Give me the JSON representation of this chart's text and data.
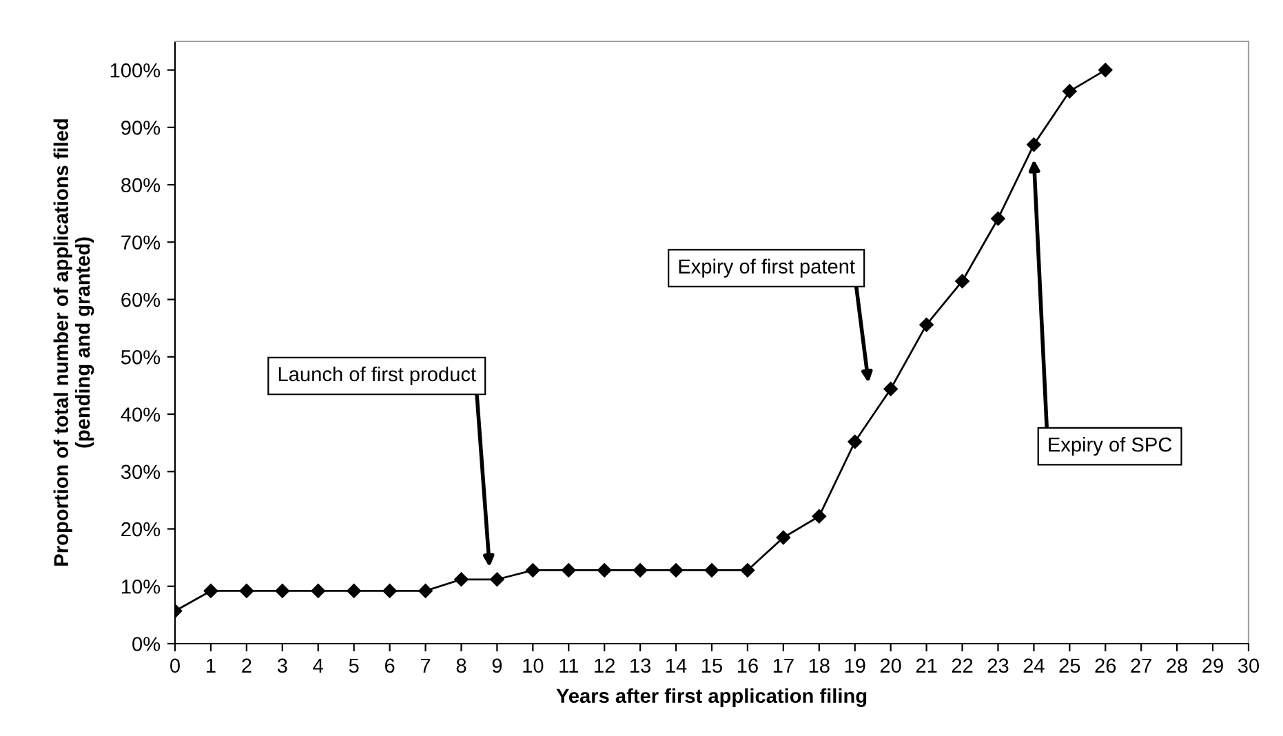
{
  "chart_data": {
    "type": "line",
    "xlabel": "Years after first application filing",
    "ylabel": "Proportion of total number of applications filed\n(pending and granted)",
    "x": [
      0,
      1,
      2,
      3,
      4,
      5,
      6,
      7,
      8,
      9,
      10,
      11,
      12,
      13,
      14,
      15,
      16,
      17,
      18,
      19,
      20,
      21,
      22,
      23,
      24,
      25,
      26
    ],
    "series": [
      {
        "color": "#000000",
        "values": [
          5.7,
          9.2,
          9.2,
          9.2,
          9.2,
          9.2,
          9.2,
          9.2,
          11.2,
          11.2,
          12.8,
          12.8,
          12.8,
          12.8,
          12.8,
          12.8,
          12.8,
          18.5,
          22.2,
          35.2,
          44.4,
          55.6,
          63.2,
          74.1,
          87.0,
          96.3,
          100
        ]
      }
    ],
    "marker": "diamond",
    "line_style": "solid",
    "xlim": [
      0,
      30
    ],
    "xticks": [
      0,
      1,
      2,
      3,
      4,
      5,
      6,
      7,
      8,
      9,
      10,
      11,
      12,
      13,
      14,
      15,
      16,
      17,
      18,
      19,
      20,
      21,
      22,
      23,
      24,
      25,
      26,
      27,
      28,
      29,
      30
    ],
    "ylim": [
      0,
      105
    ],
    "yticks": [
      {
        "value": 0,
        "label": "0%"
      },
      {
        "value": 10,
        "label": "10%"
      },
      {
        "value": 20,
        "label": "20%"
      },
      {
        "value": 30,
        "label": "30%"
      },
      {
        "value": 40,
        "label": "40%"
      },
      {
        "value": 50,
        "label": "50%"
      },
      {
        "value": 60,
        "label": "60%"
      },
      {
        "value": 70,
        "label": "70%"
      },
      {
        "value": 80,
        "label": "80%"
      },
      {
        "value": 90,
        "label": "90%"
      },
      {
        "value": 100,
        "label": "100%"
      }
    ],
    "grid": false,
    "annotations": [
      "Launch of first product",
      "Expiry of first patent",
      "Expiry of SPC"
    ]
  }
}
